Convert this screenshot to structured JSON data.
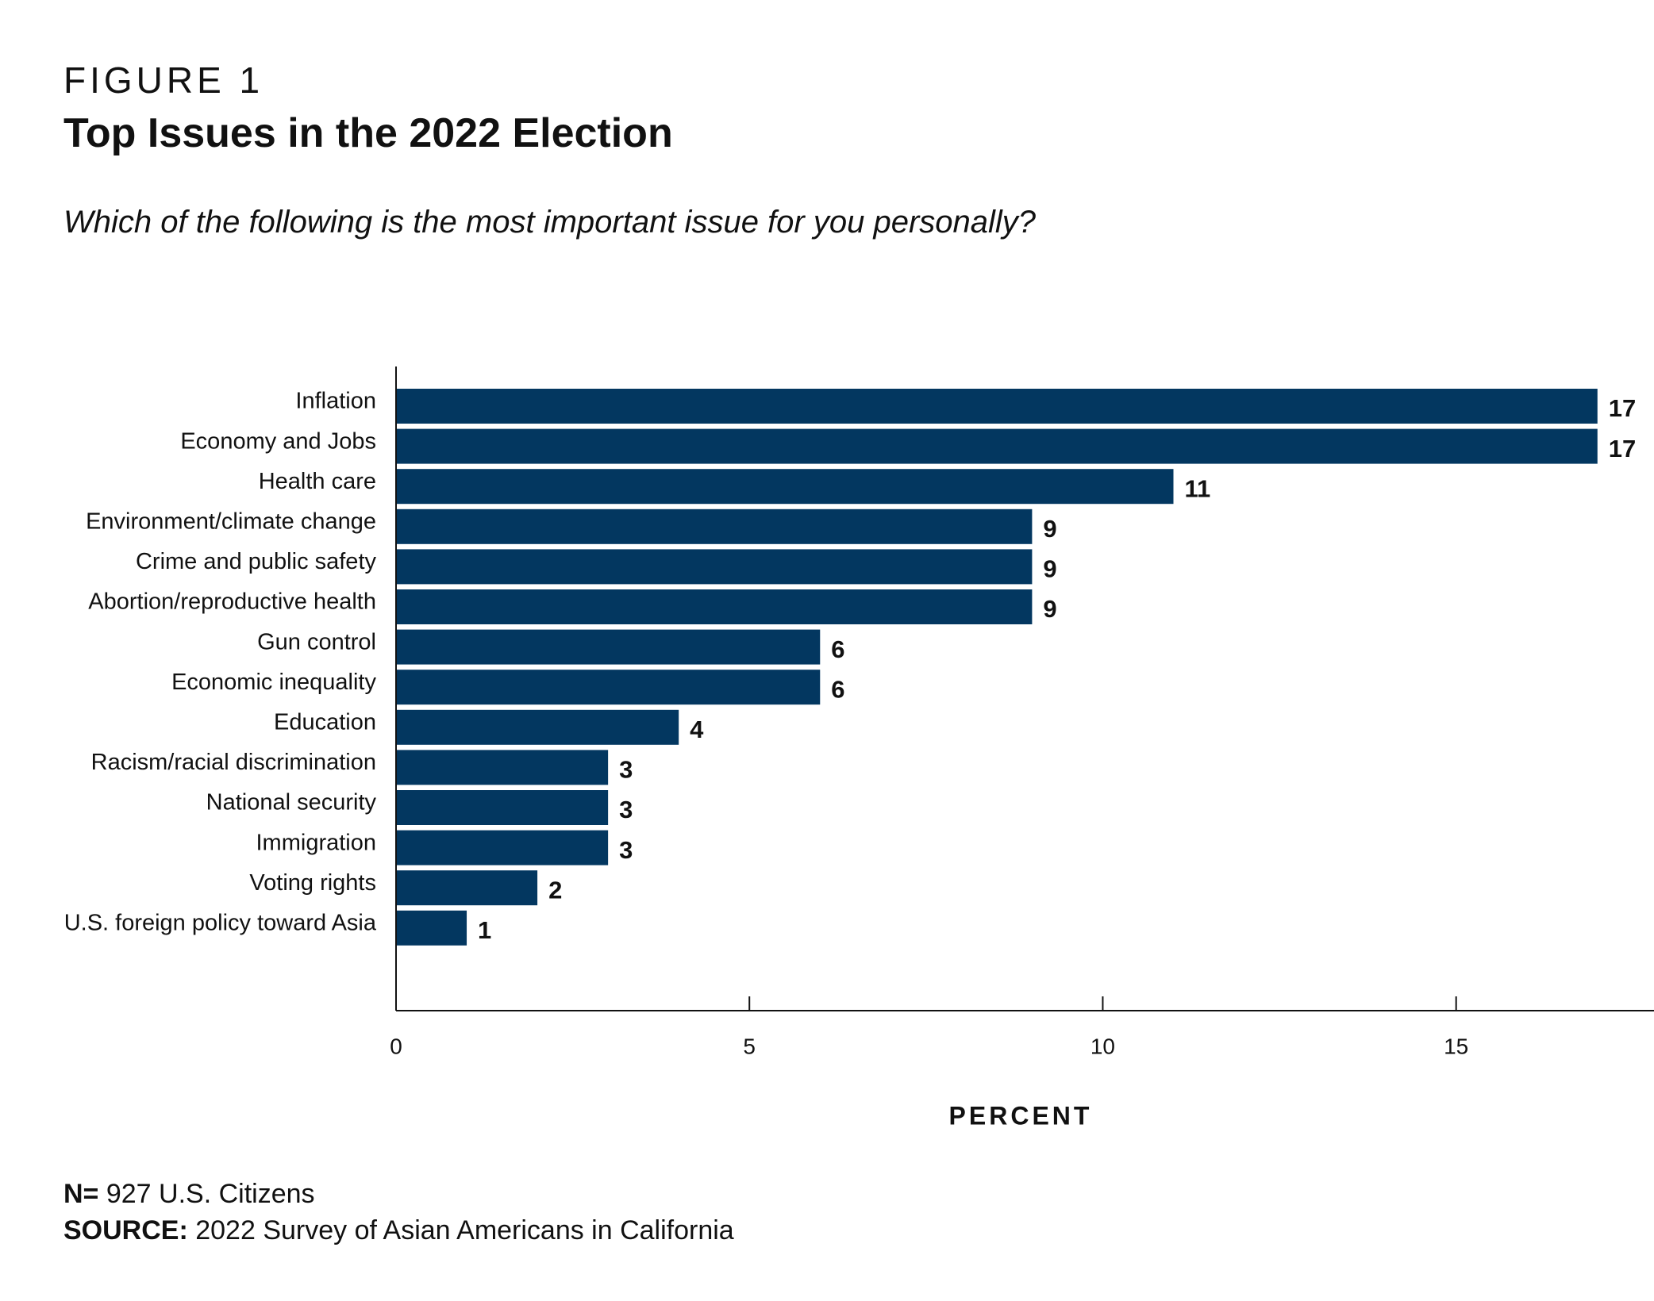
{
  "figure_label": "FIGURE 1",
  "title": "Top Issues in the 2022 Election",
  "question": "Which of the following is the most important issue for you personally?",
  "footer": {
    "n_label": "N=",
    "n_value": " 927 U.S. Citizens",
    "source_label": "SOURCE:",
    "source_value": " 2022 Survey of Asian Americans in California"
  },
  "chart_data": {
    "type": "bar",
    "orientation": "horizontal",
    "categories": [
      "Inflation",
      "Economy and Jobs",
      "Health care",
      "Environment/climate change",
      "Crime and public safety",
      "Abortion/reproductive health",
      "Gun control",
      "Economic inequality",
      "Education",
      "Racism/racial discrimination",
      "National security",
      "Immigration",
      "Voting rights",
      "U.S. foreign policy toward Asia"
    ],
    "values": [
      17,
      17,
      11,
      9,
      9,
      9,
      6,
      6,
      4,
      3,
      3,
      3,
      2,
      1
    ],
    "xlabel": "PERCENT",
    "ylabel": "",
    "xlim": [
      0,
      17.8
    ],
    "xticks": [
      0,
      5,
      10,
      15
    ],
    "grid": false,
    "bar_color": "#033760"
  }
}
